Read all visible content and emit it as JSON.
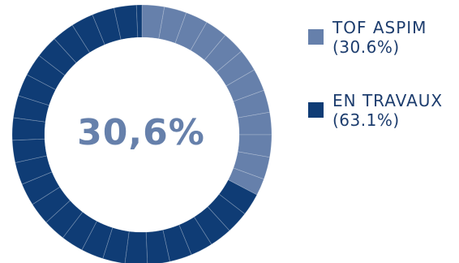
{
  "chart_data": {
    "type": "pie",
    "center_label": "30,6%",
    "slices": [
      {
        "name": "TOF ASPIM",
        "value": 30.6,
        "value_label": "(30.6%)",
        "color": "#6680ab"
      },
      {
        "name": "EN TRAVAUX",
        "value": 63.1,
        "value_label": "(63.1%)",
        "color": "#0f3c75"
      }
    ],
    "hole_color": "#ffffff",
    "legend_position": "right"
  }
}
